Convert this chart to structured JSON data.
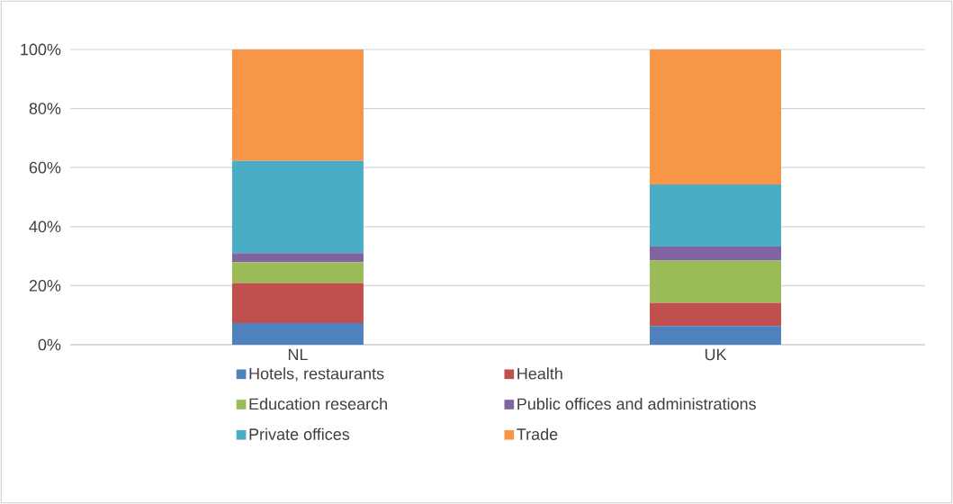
{
  "chart_data": {
    "type": "bar",
    "stacked": true,
    "categories": [
      "NL",
      "UK"
    ],
    "series": [
      {
        "name": "Hotels, restaurants",
        "color": "#4f81bd",
        "values": [
          7.3,
          6.3
        ]
      },
      {
        "name": "Health",
        "color": "#c0504d",
        "values": [
          13.6,
          7.9
        ]
      },
      {
        "name": "Education research",
        "color": "#9bbb59",
        "values": [
          7.1,
          14.3
        ]
      },
      {
        "name": "Public offices and administrations",
        "color": "#8064a2",
        "values": [
          3.0,
          4.7
        ]
      },
      {
        "name": "Private offices",
        "color": "#4bacc6",
        "values": [
          31.3,
          21.1
        ]
      },
      {
        "name": "Trade",
        "color": "#f79646",
        "values": [
          37.7,
          45.7
        ]
      }
    ],
    "ylim": [
      0,
      100
    ],
    "yticks": [
      {
        "value": 0,
        "label": "0%"
      },
      {
        "value": 20,
        "label": "20%"
      },
      {
        "value": 40,
        "label": "40%"
      },
      {
        "value": 60,
        "label": "60%"
      },
      {
        "value": 80,
        "label": "80%"
      },
      {
        "value": 100,
        "label": "100%"
      }
    ],
    "grid": "y",
    "legend": "bottom"
  }
}
